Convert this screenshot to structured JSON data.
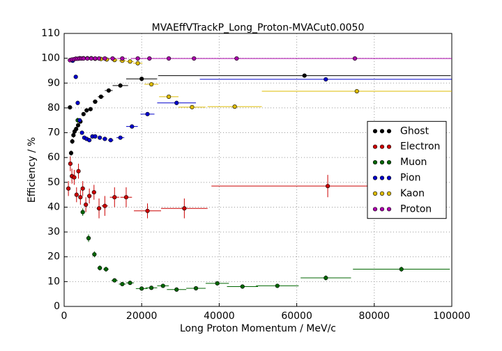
{
  "chart_data": {
    "type": "scatter",
    "title": "MVAEffVTrackP_Long_Proton-MVACut0.0050",
    "xlabel": "Long Proton Momentum / MeV/c",
    "ylabel": "Efficiency / %",
    "xlim": [
      0,
      100000
    ],
    "ylim": [
      0,
      110
    ],
    "xticks": [
      0,
      20000,
      40000,
      60000,
      80000,
      100000
    ],
    "yticks": [
      0,
      10,
      20,
      30,
      40,
      50,
      60,
      70,
      80,
      90,
      100,
      110
    ],
    "grid": true,
    "legend": "center right",
    "series": [
      {
        "name": "Ghost",
        "color": "#000000",
        "x": [
          1500,
          1800,
          2100,
          2400,
          2700,
          3100,
          3600,
          4200,
          5000,
          5800,
          6800,
          8000,
          9500,
          11500,
          14500,
          20000,
          62000
        ],
        "values": [
          80.2,
          61.8,
          66.5,
          69,
          70.5,
          71.5,
          73,
          74.5,
          77.5,
          79,
          79.5,
          82.5,
          84.5,
          87,
          89,
          91.7,
          93
        ],
        "xerr": [
          200,
          150,
          150,
          150,
          150,
          200,
          250,
          300,
          400,
          400,
          500,
          600,
          800,
          1000,
          2000,
          4000,
          37750
        ],
        "yerr": [
          0.8,
          1,
          1,
          1,
          0.9,
          0.9,
          0.8,
          0.8,
          0.7,
          0.7,
          0.7,
          0.7,
          0.6,
          0.6,
          0.6,
          0.5,
          0.5
        ]
      },
      {
        "name": "Electron",
        "color": "#cc0000",
        "x": [
          1100,
          1600,
          2000,
          2600,
          3200,
          3700,
          4200,
          4800,
          5600,
          6500,
          7700,
          9000,
          10500,
          13000,
          16000,
          21500,
          31000,
          68000
        ],
        "values": [
          47.5,
          57.5,
          52.5,
          52,
          45,
          54.5,
          44,
          47.5,
          41,
          44.5,
          46,
          39.5,
          40.5,
          44,
          44,
          38.5,
          39.5,
          48.5
        ],
        "xerr": [
          200,
          200,
          200,
          250,
          250,
          250,
          250,
          300,
          400,
          400,
          500,
          600,
          800,
          1200,
          1500,
          3500,
          6000,
          30000
        ],
        "yerr": [
          3,
          3,
          3,
          3,
          3,
          3,
          3,
          3,
          3,
          3,
          3,
          4,
          4,
          4,
          4,
          3,
          4,
          4.5
        ]
      },
      {
        "name": "Muon",
        "color": "#006600",
        "x": [
          3500,
          4800,
          6300,
          7800,
          9200,
          10800,
          13000,
          15000,
          17000,
          20000,
          22500,
          25500,
          29000,
          34000,
          39500,
          46000,
          55000,
          67500,
          87000
        ],
        "values": [
          75,
          38,
          27.5,
          21,
          15.5,
          15,
          10.5,
          9,
          9.5,
          7.2,
          7.5,
          8.3,
          6.8,
          7.3,
          9.3,
          8,
          8.3,
          11.5,
          15
        ],
        "xerr": [
          300,
          400,
          500,
          500,
          600,
          700,
          800,
          900,
          1000,
          1500,
          1500,
          1500,
          2500,
          2500,
          3000,
          4000,
          5500,
          6500,
          12500
        ],
        "yerr": [
          1,
          1.5,
          1.5,
          1.2,
          1,
          1,
          0.8,
          0.8,
          0.8,
          0.7,
          0.7,
          0.7,
          0.6,
          0.6,
          0.8,
          0.7,
          0.7,
          1,
          1
        ]
      },
      {
        "name": "Pion",
        "color": "#0000cc",
        "x": [
          2200,
          3000,
          3500,
          4000,
          4600,
          5200,
          5800,
          6500,
          7300,
          8000,
          9200,
          10500,
          12000,
          14500,
          17500,
          21500,
          29000,
          67500
        ],
        "values": [
          99,
          92.5,
          82,
          75,
          70,
          68,
          67.5,
          67,
          68.5,
          68.5,
          68,
          67.5,
          67,
          68,
          72.5,
          77.5,
          82,
          91.5
        ],
        "xerr": [
          200,
          200,
          200,
          250,
          250,
          300,
          300,
          350,
          400,
          400,
          500,
          600,
          700,
          1000,
          1500,
          1800,
          5000,
          32500
        ],
        "yerr": [
          0.5,
          0.8,
          0.8,
          0.8,
          0.8,
          0.7,
          0.7,
          0.7,
          0.7,
          0.7,
          0.7,
          0.7,
          0.7,
          0.7,
          0.7,
          0.6,
          0.6,
          0.5
        ]
      },
      {
        "name": "Kaon",
        "color": "#ddbb00",
        "x": [
          3000,
          4000,
          5000,
          6000,
          7000,
          8000,
          9500,
          11000,
          13000,
          15000,
          17000,
          19000,
          22500,
          27000,
          33000,
          44000,
          75500
        ],
        "values": [
          99.8,
          100,
          100,
          100,
          100,
          99.8,
          99.7,
          99.5,
          99.3,
          99,
          98.7,
          98,
          89.5,
          84.5,
          80.3,
          80.5,
          86.7
        ],
        "xerr": [
          300,
          400,
          400,
          400,
          500,
          500,
          600,
          700,
          800,
          900,
          1000,
          1200,
          1800,
          2500,
          3500,
          7000,
          24500
        ],
        "yerr": [
          0.3,
          0.3,
          0.3,
          0.3,
          0.3,
          0.3,
          0.3,
          0.3,
          0.3,
          0.4,
          0.4,
          0.4,
          0.6,
          0.6,
          0.6,
          0.6,
          0.5
        ]
      },
      {
        "name": "Proton",
        "color": "#aa00aa",
        "x": [
          1500,
          2000,
          2500,
          3000,
          3500,
          4000,
          4500,
          5000,
          6000,
          7000,
          8000,
          9000,
          10500,
          12500,
          15000,
          19000,
          22000,
          27000,
          33500,
          44500,
          75000
        ],
        "values": [
          99.2,
          99.5,
          99.6,
          99.8,
          99.8,
          99.9,
          99.9,
          99.9,
          99.9,
          99.9,
          99.9,
          99.9,
          99.9,
          99.9,
          99.9,
          99.9,
          99.9,
          99.9,
          99.9,
          99.9,
          99.9
        ],
        "xerr": [
          200,
          200,
          200,
          200,
          200,
          250,
          250,
          250,
          400,
          400,
          500,
          500,
          700,
          1000,
          1200,
          1800,
          2000,
          3000,
          4000,
          7000,
          25000
        ],
        "yerr": [
          0.3,
          0.2,
          0.2,
          0.1,
          0.1,
          0.1,
          0.1,
          0.1,
          0.1,
          0.1,
          0.1,
          0.1,
          0.1,
          0.1,
          0.1,
          0.1,
          0.1,
          0.1,
          0.1,
          0.1,
          0.1
        ]
      }
    ]
  }
}
